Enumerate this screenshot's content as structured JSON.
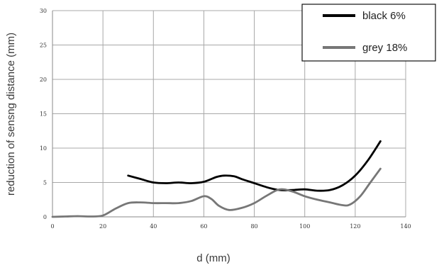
{
  "chart_data": {
    "type": "line",
    "title": "",
    "xlabel": "d (mm)",
    "ylabel": "reduction of sensng distance (mm)",
    "xlim": [
      0,
      140
    ],
    "ylim": [
      0,
      30
    ],
    "x_ticks": [
      "0",
      "20",
      "40",
      "60",
      "80",
      "100",
      "120",
      "140"
    ],
    "y_ticks": [
      "0",
      "5",
      "10",
      "15",
      "20",
      "25",
      "30"
    ],
    "grid": true,
    "legend_position": "top-right",
    "series": [
      {
        "name": "black 6%",
        "color": "#000000",
        "x": [
          30,
          35,
          40,
          45,
          50,
          55,
          60,
          65,
          68,
          72,
          75,
          80,
          85,
          90,
          95,
          100,
          105,
          110,
          115,
          120,
          125,
          130
        ],
        "y": [
          6.0,
          5.5,
          5.0,
          4.9,
          5.0,
          4.9,
          5.1,
          5.8,
          6.0,
          5.9,
          5.5,
          4.9,
          4.3,
          3.9,
          3.9,
          4.0,
          3.8,
          3.9,
          4.6,
          6.0,
          8.2,
          11.0
        ]
      },
      {
        "name": "grey 18%",
        "color": "#777777",
        "x": [
          0,
          5,
          10,
          15,
          20,
          25,
          30,
          35,
          40,
          45,
          50,
          55,
          60,
          63,
          66,
          70,
          75,
          80,
          85,
          90,
          95,
          100,
          105,
          110,
          115,
          118,
          122,
          126,
          130
        ],
        "y": [
          0.0,
          0.05,
          0.1,
          0.05,
          0.2,
          1.2,
          2.0,
          2.1,
          2.0,
          2.0,
          2.0,
          2.3,
          3.0,
          2.6,
          1.6,
          1.0,
          1.3,
          2.0,
          3.1,
          4.0,
          3.7,
          3.0,
          2.5,
          2.1,
          1.7,
          1.8,
          3.0,
          5.0,
          7.0
        ]
      }
    ]
  }
}
